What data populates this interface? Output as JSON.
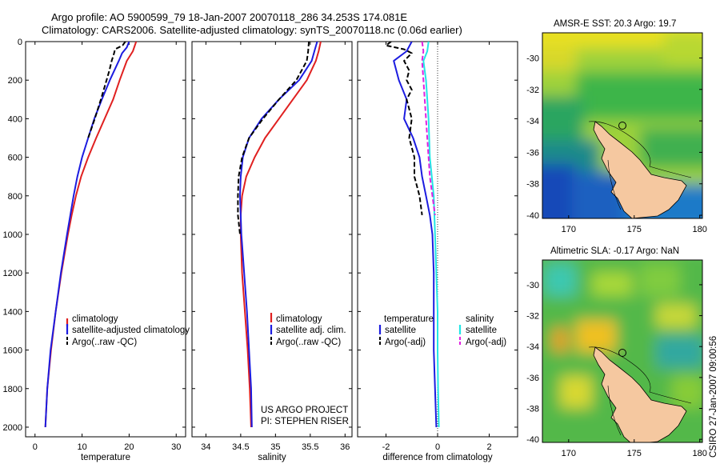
{
  "title_line1": "Argo profile: AO 5900599_79 18-Jan-2007 20070118_286 34.253S 174.081E",
  "title_line2": "Climatology: CARS2006. Satellite-adjusted climatology: synTS_20070118.nc (0.06d earlier)",
  "credit": "CSIRO 27-Jan-2007 09:00:56",
  "project_line1": "US ARGO PROJECT",
  "project_line2": "PI: STEPHEN RISER",
  "colors": {
    "climatology": "#e02020",
    "satellite": "#1c1ce0",
    "argo": "#000000",
    "sat_salinity": "#22e6e6",
    "argo_adj_salinity": "#e020e0",
    "land": "#f5c8a0"
  },
  "chart_data": [
    {
      "type": "line",
      "xlabel": "temperature",
      "xticks": [
        0,
        10,
        20,
        30
      ],
      "yticks": [
        0,
        200,
        400,
        600,
        800,
        1000,
        1200,
        1400,
        1600,
        1800,
        2000
      ],
      "xlim": [
        -2,
        32
      ],
      "ylim": [
        2050,
        0
      ],
      "legend": [
        "climatology",
        "satellite-adjusted climatology",
        "Argo(..raw -QC)"
      ],
      "series": [
        {
          "name": "climatology",
          "y": [
            0,
            50,
            100,
            200,
            300,
            400,
            500,
            600,
            700,
            800,
            900,
            1000,
            1200,
            1400,
            1600,
            1800,
            2000
          ],
          "x": [
            21.5,
            20.8,
            19.5,
            18.0,
            16.6,
            14.8,
            13.0,
            11.3,
            9.8,
            8.7,
            7.8,
            7.0,
            5.6,
            4.4,
            3.4,
            2.6,
            2.2
          ]
        },
        {
          "name": "satellite-adjusted climatology",
          "y": [
            0,
            30,
            60,
            100,
            200,
            300,
            400,
            500,
            600,
            700,
            800,
            900,
            1000,
            1200,
            1400,
            1600,
            1800,
            2000
          ],
          "x": [
            20.0,
            19.5,
            18.5,
            17.8,
            15.9,
            14.2,
            12.6,
            11.3,
            10.0,
            9.0,
            8.2,
            7.5,
            6.8,
            5.5,
            4.4,
            3.3,
            2.6,
            2.2
          ]
        },
        {
          "name": "Argo(..raw -QC)",
          "y": [
            0,
            20,
            40,
            60,
            100,
            150,
            200,
            300,
            400,
            500
          ],
          "x": [
            19.2,
            18.6,
            17.0,
            16.8,
            16.3,
            15.8,
            15.2,
            14.0,
            12.7,
            11.3
          ]
        }
      ]
    },
    {
      "type": "line",
      "xlabel": "salinity",
      "xticks": [
        34,
        34.5,
        35,
        35.5,
        36
      ],
      "yticks": [
        0,
        200,
        400,
        600,
        800,
        1000,
        1200,
        1400,
        1600,
        1800,
        2000
      ],
      "xlim": [
        33.8,
        36.1
      ],
      "ylim": [
        2050,
        0
      ],
      "legend": [
        "climatology",
        "satellite adj. clim.",
        "Argo(..raw -QC)"
      ],
      "series": [
        {
          "name": "climatology",
          "y": [
            0,
            50,
            100,
            200,
            300,
            400,
            500,
            600,
            700,
            800,
            900,
            1000,
            1200,
            1400,
            1600,
            1800,
            2000
          ],
          "x": [
            35.65,
            35.62,
            35.58,
            35.45,
            35.25,
            35.05,
            34.85,
            34.7,
            34.58,
            34.52,
            34.5,
            34.5,
            34.52,
            34.56,
            34.6,
            34.63,
            34.65
          ]
        },
        {
          "name": "satellite adj. clim.",
          "y": [
            0,
            50,
            100,
            200,
            300,
            400,
            500,
            600,
            700,
            800,
            900,
            1000,
            1200,
            1400,
            1600,
            1800,
            2000
          ],
          "x": [
            35.6,
            35.56,
            35.52,
            35.34,
            35.05,
            34.8,
            34.62,
            34.53,
            34.5,
            34.49,
            34.5,
            34.51,
            34.55,
            34.59,
            34.62,
            34.65,
            34.66
          ]
        },
        {
          "name": "Argo(..raw -QC)",
          "y": [
            0,
            50,
            100,
            200,
            300,
            400,
            500,
            600,
            700,
            800,
            900,
            1000
          ],
          "x": [
            35.48,
            35.47,
            35.45,
            35.3,
            35.05,
            34.82,
            34.62,
            34.52,
            34.47,
            34.46,
            34.46,
            34.49
          ]
        }
      ]
    },
    {
      "type": "line",
      "xlabel": "difference from climatology",
      "xticks": [
        -2,
        0,
        2
      ],
      "yticks": [
        0,
        200,
        400,
        600,
        800,
        1000,
        1200,
        1400,
        1600,
        1800,
        2000
      ],
      "xlim": [
        -3.1,
        3.1
      ],
      "ylim": [
        2050,
        0
      ],
      "legend_groups": [
        {
          "heading": "temperature",
          "entries": [
            "satellite",
            "Argo(-adj)"
          ]
        },
        {
          "heading": "salinity",
          "entries": [
            "satellite",
            "Argo(-adj)"
          ]
        }
      ],
      "series": [
        {
          "name": "temperature satellite",
          "y": [
            0,
            50,
            100,
            200,
            300,
            400,
            500,
            600,
            700,
            800,
            900,
            1000,
            1200,
            1400,
            1600,
            1800,
            2000
          ],
          "x": [
            -1.0,
            -1.2,
            -1.7,
            -1.5,
            -1.2,
            -1.3,
            -0.95,
            -0.7,
            -0.6,
            -0.45,
            -0.3,
            -0.2,
            -0.15,
            -0.15,
            -0.15,
            -0.1,
            -0.05
          ]
        },
        {
          "name": "temperature Argo(-adj)",
          "y": [
            0,
            20,
            40,
            60,
            100,
            150,
            200,
            250,
            300,
            400,
            500,
            600,
            700,
            800,
            900
          ],
          "x": [
            -1.8,
            -2.0,
            -1.3,
            -1.0,
            -1.3,
            -1.1,
            -1.2,
            -1.0,
            -1.2,
            -1.0,
            -1.1,
            -0.9,
            -0.9,
            -0.7,
            -0.6
          ]
        },
        {
          "name": "salinity satellite",
          "y": [
            0,
            50,
            100,
            200,
            400,
            600,
            800,
            1000,
            1200,
            1400,
            1600,
            1800,
            2000
          ],
          "x": [
            -0.35,
            -0.4,
            -0.55,
            -0.45,
            -0.35,
            -0.3,
            -0.15,
            -0.1,
            -0.05,
            0.0,
            0.0,
            0.02,
            0.05
          ]
        },
        {
          "name": "salinity Argo(-adj)",
          "y": [
            0,
            50,
            100,
            200,
            300,
            400,
            500,
            600,
            700,
            800,
            900
          ],
          "x": [
            -0.6,
            -0.55,
            -0.6,
            -0.55,
            -0.5,
            -0.45,
            -0.4,
            -0.35,
            -0.3,
            -0.2,
            -0.1
          ]
        }
      ]
    },
    {
      "type": "heatmap",
      "title": "AMSR-E SST: 20.3 Argo: 19.7",
      "xticks": [
        170,
        175,
        180
      ],
      "yticks": [
        -30,
        -32,
        -34,
        -36,
        -38,
        -40
      ],
      "xlim": [
        168,
        180.2
      ],
      "ylim": [
        -40.2,
        -28.4
      ],
      "marker": {
        "lon": 174.081,
        "lat": -34.253
      }
    },
    {
      "type": "heatmap",
      "title": "Altimetric SLA: -0.17 Argo: NaN",
      "xticks": [
        170,
        175,
        180
      ],
      "yticks": [
        -30,
        -32,
        -34,
        -36,
        -38,
        -40
      ],
      "xlim": [
        168,
        180.2
      ],
      "ylim": [
        -40.2,
        -28.4
      ],
      "marker": {
        "lon": 174.081,
        "lat": -34.253
      }
    }
  ]
}
